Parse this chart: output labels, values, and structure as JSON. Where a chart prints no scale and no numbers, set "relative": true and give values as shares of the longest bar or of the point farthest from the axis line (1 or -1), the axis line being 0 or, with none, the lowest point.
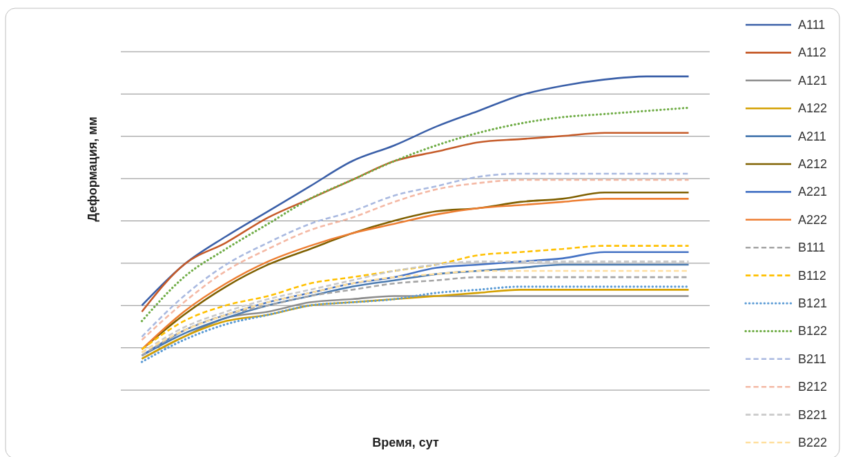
{
  "chart_data": {
    "type": "line",
    "relative": true,
    "xlabel": "Время, сут",
    "ylabel": "Деформация, мм",
    "grid": "y",
    "legend": "right",
    "categories": [
      null,
      null,
      null,
      null,
      null,
      null,
      null,
      null,
      null,
      null,
      null,
      null,
      null,
      null
    ],
    "series": [
      {
        "name": "A111",
        "color": "#3a5fa8",
        "line_style": "solid",
        "values": [
          0.27,
          0.4,
          0.49,
          0.57,
          0.65,
          0.73,
          0.78,
          0.84,
          0.89,
          0.94,
          0.97,
          0.99,
          1.0,
          1.0
        ]
      },
      {
        "name": "A112",
        "color": "#c55a28",
        "line_style": "solid",
        "values": [
          0.25,
          0.4,
          0.47,
          0.55,
          0.61,
          0.67,
          0.73,
          0.76,
          0.79,
          0.8,
          0.81,
          0.82,
          0.82,
          0.82
        ]
      },
      {
        "name": "A121",
        "color": "#8c8c8c",
        "line_style": "solid",
        "values": [
          0.1,
          0.17,
          0.23,
          0.25,
          0.28,
          0.29,
          0.3,
          0.3,
          0.3,
          0.3,
          0.3,
          0.3,
          0.3,
          0.3
        ]
      },
      {
        "name": "A122",
        "color": "#d4a000",
        "line_style": "solid",
        "values": [
          0.1,
          0.17,
          0.22,
          0.24,
          0.27,
          0.28,
          0.29,
          0.3,
          0.31,
          0.32,
          0.32,
          0.32,
          0.32,
          0.32
        ]
      },
      {
        "name": "A211",
        "color": "#4a7ab0",
        "line_style": "solid",
        "values": [
          0.11,
          0.18,
          0.23,
          0.27,
          0.3,
          0.33,
          0.35,
          0.37,
          0.38,
          0.39,
          0.4,
          0.4,
          0.4,
          0.4
        ]
      },
      {
        "name": "A212",
        "color": "#7f6000",
        "line_style": "solid",
        "values": [
          0.13,
          0.24,
          0.33,
          0.4,
          0.45,
          0.5,
          0.54,
          0.57,
          0.58,
          0.6,
          0.61,
          0.63,
          0.63,
          0.63
        ]
      },
      {
        "name": "A221",
        "color": "#4472c4",
        "line_style": "solid",
        "values": [
          0.11,
          0.19,
          0.24,
          0.28,
          0.31,
          0.34,
          0.36,
          0.39,
          0.4,
          0.41,
          0.42,
          0.44,
          0.44,
          0.44
        ]
      },
      {
        "name": "A222",
        "color": "#ed7d31",
        "line_style": "solid",
        "values": [
          0.13,
          0.25,
          0.34,
          0.41,
          0.46,
          0.5,
          0.53,
          0.56,
          0.58,
          0.59,
          0.6,
          0.61,
          0.61,
          0.61
        ]
      },
      {
        "name": "B111",
        "color": "#a5a5a5",
        "line_style": "dashed",
        "values": [
          0.11,
          0.19,
          0.24,
          0.27,
          0.3,
          0.32,
          0.34,
          0.35,
          0.36,
          0.36,
          0.36,
          0.36,
          0.36,
          0.36
        ]
      },
      {
        "name": "B112",
        "color": "#ffc000",
        "line_style": "dashed",
        "values": [
          0.13,
          0.22,
          0.27,
          0.3,
          0.34,
          0.36,
          0.38,
          0.4,
          0.43,
          0.44,
          0.45,
          0.46,
          0.46,
          0.46
        ]
      },
      {
        "name": "B121",
        "color": "#5b9bd5",
        "line_style": "dotted",
        "values": [
          0.09,
          0.16,
          0.21,
          0.24,
          0.27,
          0.28,
          0.29,
          0.31,
          0.32,
          0.33,
          0.33,
          0.33,
          0.33,
          0.33
        ]
      },
      {
        "name": "B122",
        "color": "#70ad47",
        "line_style": "dotted",
        "values": [
          0.22,
          0.36,
          0.45,
          0.53,
          0.61,
          0.67,
          0.73,
          0.78,
          0.82,
          0.85,
          0.87,
          0.88,
          0.89,
          0.9
        ]
      },
      {
        "name": "B211",
        "color": "#a9b9e0",
        "line_style": "dashed",
        "values": [
          0.17,
          0.3,
          0.4,
          0.47,
          0.53,
          0.57,
          0.62,
          0.65,
          0.68,
          0.69,
          0.69,
          0.69,
          0.69,
          0.69
        ]
      },
      {
        "name": "B212",
        "color": "#f4b8a4",
        "line_style": "dashed",
        "values": [
          0.16,
          0.28,
          0.38,
          0.45,
          0.51,
          0.55,
          0.6,
          0.64,
          0.66,
          0.67,
          0.67,
          0.67,
          0.67,
          0.67
        ]
      },
      {
        "name": "B221",
        "color": "#c9c9c9",
        "line_style": "dashed",
        "values": [
          0.12,
          0.2,
          0.25,
          0.29,
          0.32,
          0.35,
          0.38,
          0.4,
          0.41,
          0.41,
          0.41,
          0.41,
          0.41,
          0.41
        ]
      },
      {
        "name": "B222",
        "color": "#ffdf9e",
        "line_style": "dashed",
        "values": [
          0.12,
          0.19,
          0.24,
          0.28,
          0.31,
          0.34,
          0.36,
          0.37,
          0.38,
          0.38,
          0.38,
          0.38,
          0.38,
          0.38
        ]
      }
    ]
  }
}
